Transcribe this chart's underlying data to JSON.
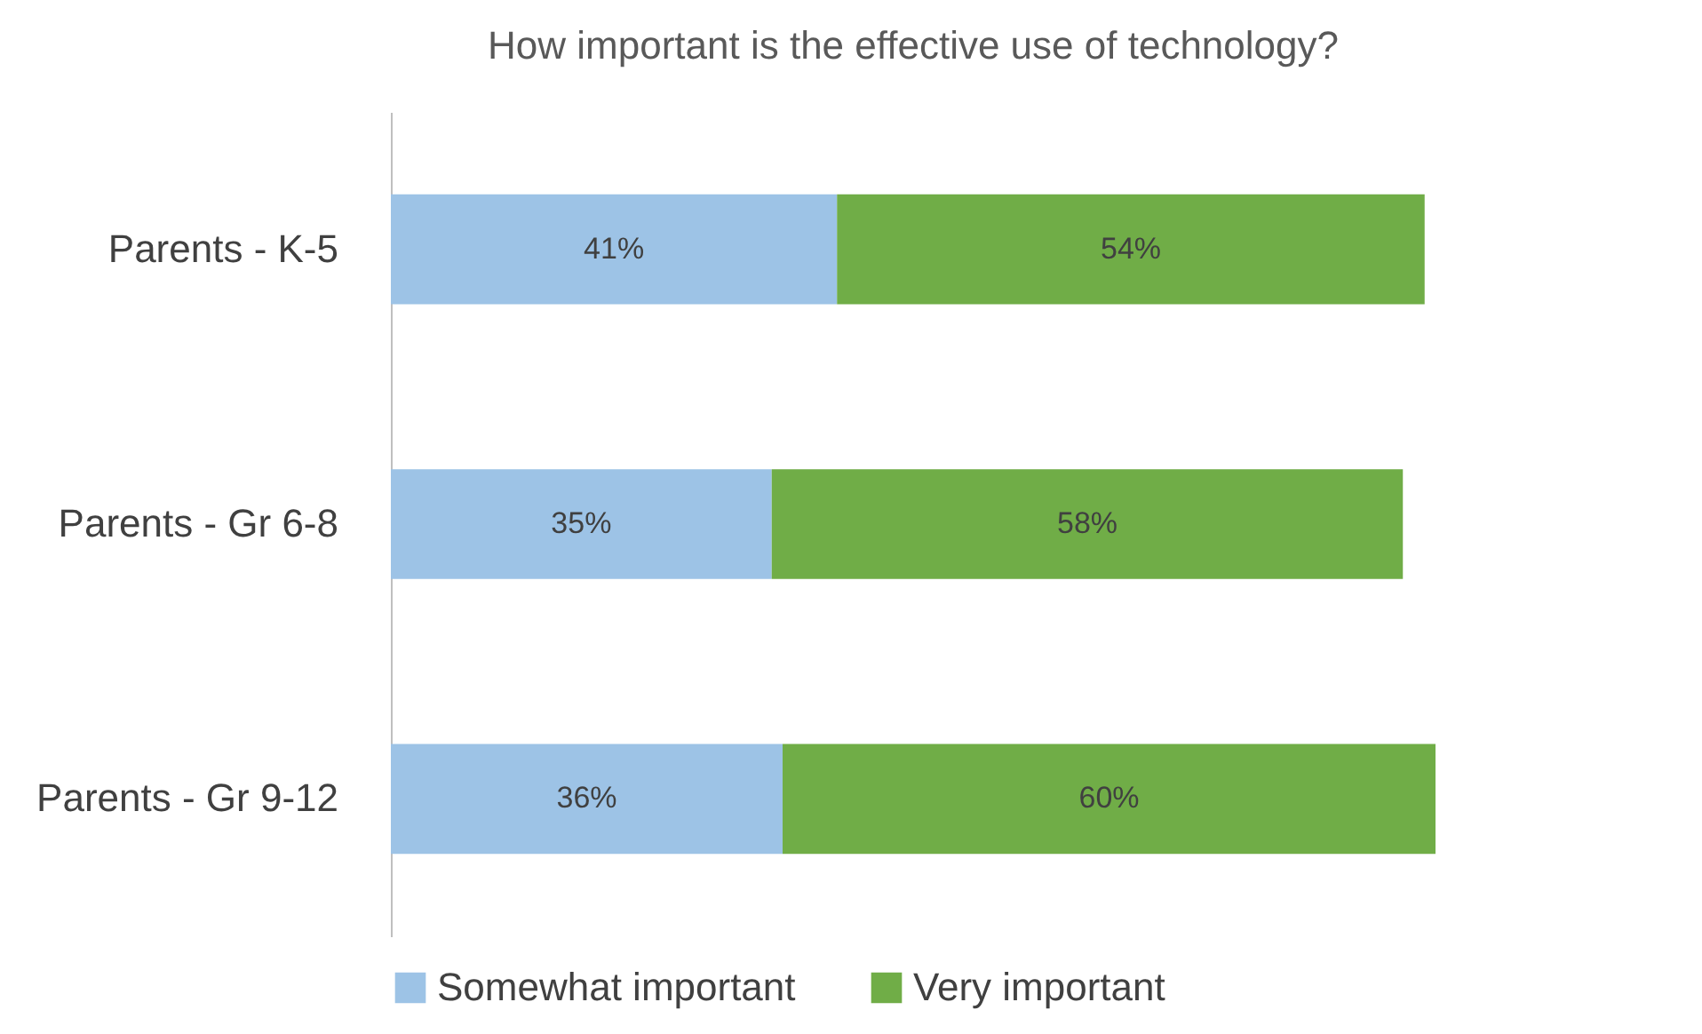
{
  "chart_data": {
    "type": "bar",
    "orientation": "horizontal",
    "stacked": true,
    "title": "How important is the effective use of technology?",
    "categories": [
      "Parents - K-5",
      "Parents - Gr 6-8",
      "Parents - Gr 9-12"
    ],
    "series": [
      {
        "name": "Somewhat important",
        "color": "#9dc3e6",
        "values": [
          41,
          35,
          36
        ],
        "value_labels": [
          "41%",
          "35%",
          "36%"
        ]
      },
      {
        "name": "Very important",
        "color": "#70ad47",
        "values": [
          54,
          58,
          60
        ],
        "value_labels": [
          "54%",
          "58%",
          "60%"
        ]
      }
    ],
    "tick_labels": "y",
    "legend": "bottom",
    "grid": false
  }
}
